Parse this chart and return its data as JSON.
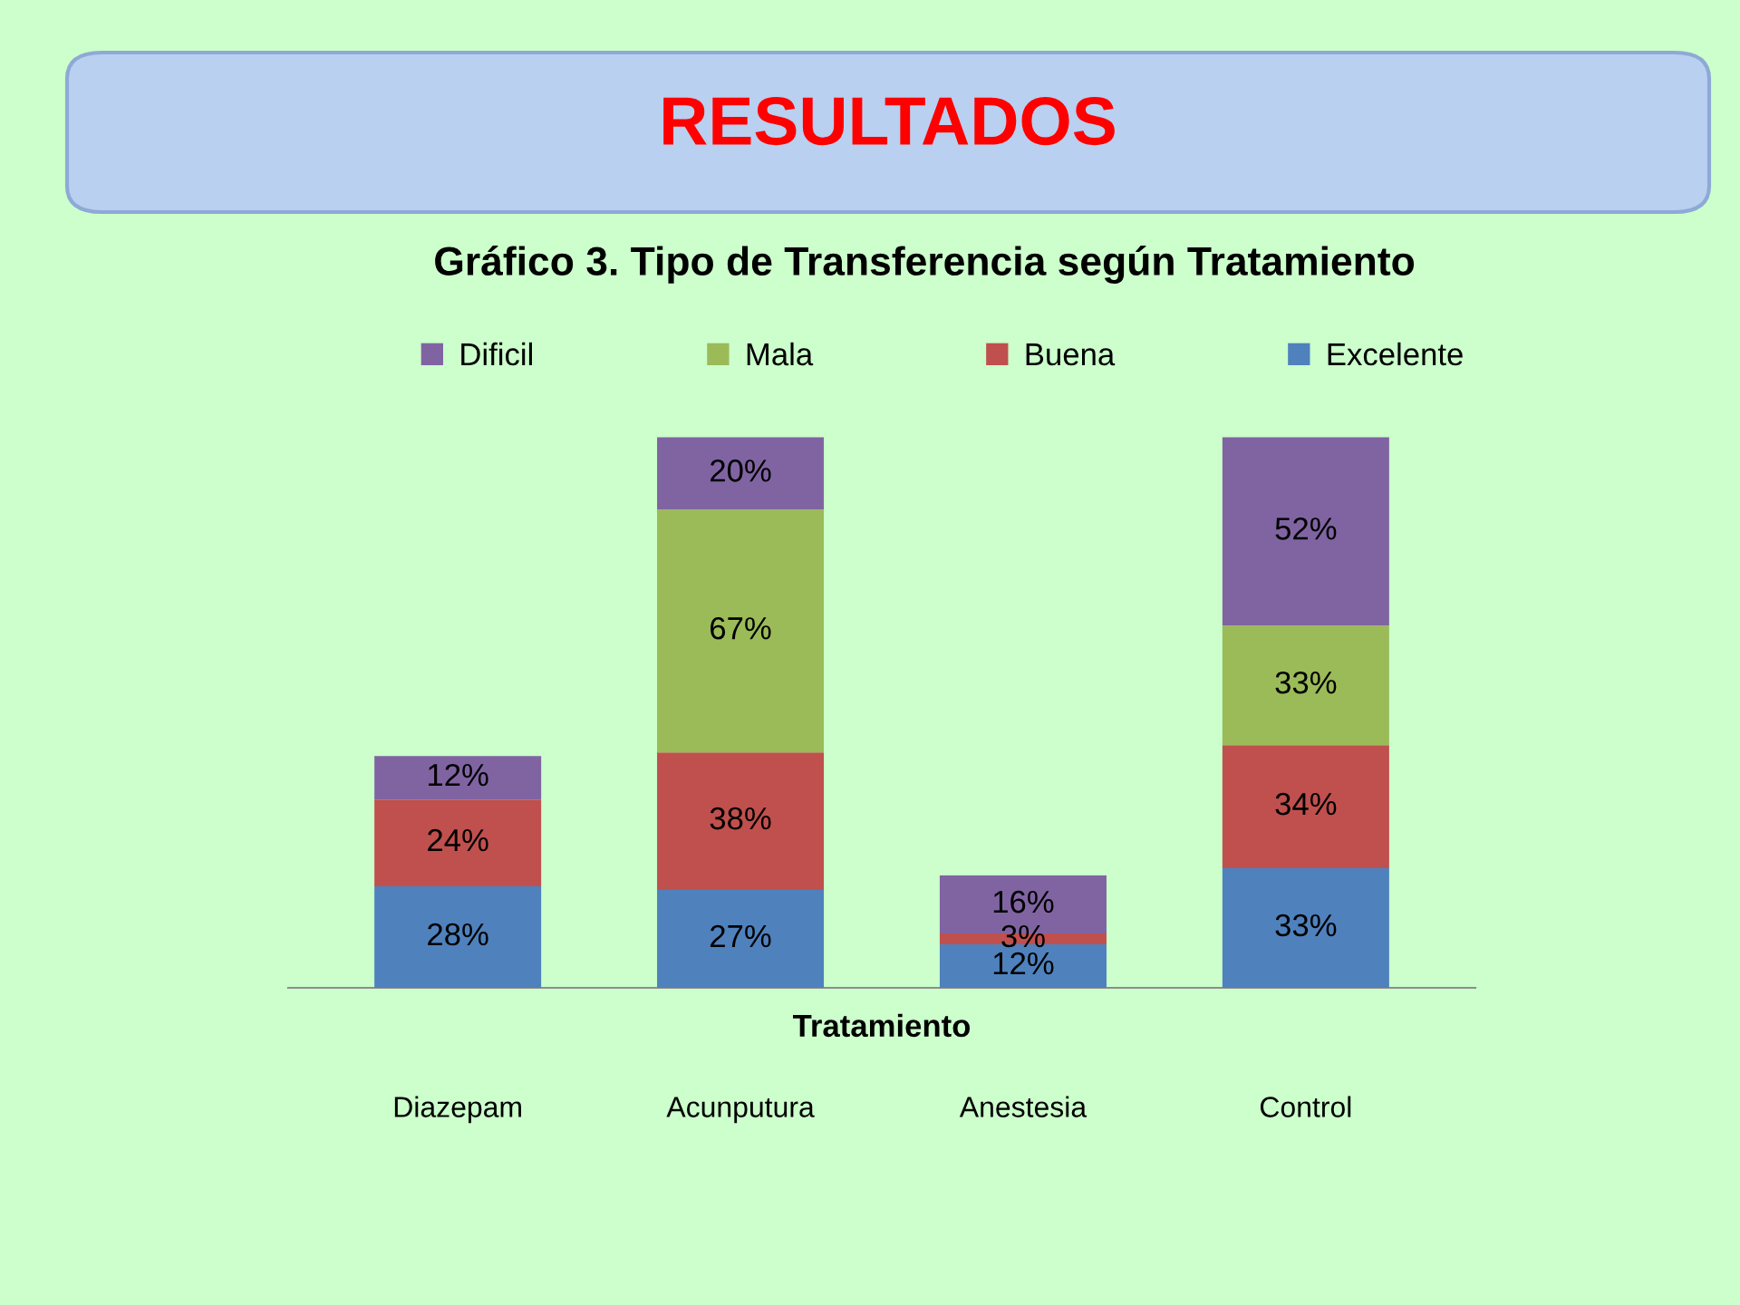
{
  "chart_data": {
    "type": "bar",
    "title": "RESULTADOS",
    "subtitle": "Gráfico 3. Tipo de Transferencia según Tratamiento",
    "xlabel": "Tratamiento",
    "categories": [
      "Diazepam",
      "Acunputura",
      "Anestesia",
      "Control"
    ],
    "stacked": true,
    "series": [
      {
        "name": "Excelente",
        "color": "#4f81bd",
        "values": [
          28,
          27,
          12,
          33
        ],
        "value_labels": [
          "28%",
          "27%",
          "12%",
          "33%"
        ]
      },
      {
        "name": "Buena",
        "color": "#c0504d",
        "values": [
          24,
          38,
          3,
          34
        ],
        "value_labels": [
          "24%",
          "38%",
          "3%",
          "34%"
        ]
      },
      {
        "name": "Mala",
        "color": "#9bbb59",
        "values": [
          null,
          67,
          null,
          33
        ],
        "value_labels": [
          null,
          "67%",
          null,
          "33%"
        ]
      },
      {
        "name": "Dificil",
        "color": "#8064a2",
        "values": [
          12,
          20,
          16,
          52
        ],
        "value_labels": [
          "12%",
          "20%",
          "16%",
          "52%"
        ]
      }
    ],
    "legend": "top"
  }
}
